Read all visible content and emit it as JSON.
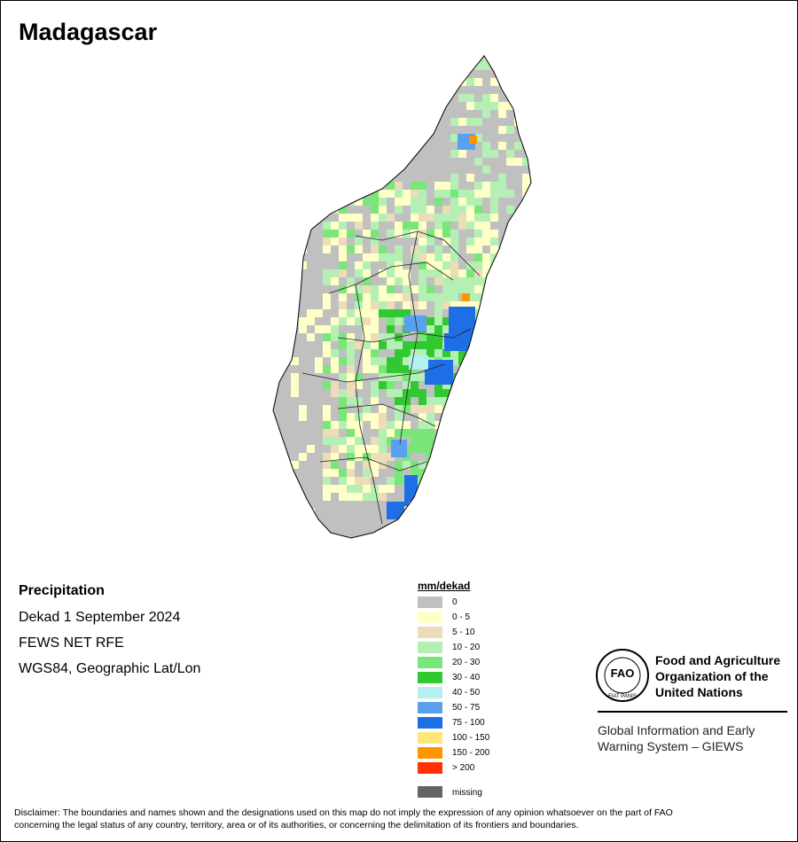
{
  "title": "Madagascar",
  "info": {
    "heading": "Precipitation",
    "lines": [
      "Dekad 1 September 2024",
      "FEWS NET RFE",
      "WGS84, Geographic Lat/Lon"
    ]
  },
  "legend": {
    "title": "mm/dekad",
    "items": [
      {
        "label": "0",
        "color": "#c0c0c0"
      },
      {
        "label": "0 - 5",
        "color": "#ffffc8"
      },
      {
        "label": "5 - 10",
        "color": "#ecdcb8"
      },
      {
        "label": "10 - 20",
        "color": "#b4f0b4"
      },
      {
        "label": "20 - 30",
        "color": "#78e678"
      },
      {
        "label": "30 - 40",
        "color": "#32c832"
      },
      {
        "label": "40 - 50",
        "color": "#b4f0f0"
      },
      {
        "label": "50 - 75",
        "color": "#5aa0f0"
      },
      {
        "label": "75 - 100",
        "color": "#1e6ee6"
      },
      {
        "label": "100 - 150",
        "color": "#ffe678"
      },
      {
        "label": "150 - 200",
        "color": "#ff9600"
      },
      {
        "label": "> 200",
        "color": "#ff3200"
      }
    ],
    "missing": {
      "label": "missing",
      "color": "#646464"
    }
  },
  "logo": {
    "emblem": "FAO",
    "motto": "FIAT PANIS",
    "org": [
      "Food and Agriculture",
      "Organization of the",
      "United Nations"
    ],
    "system": [
      "Global Information and Early",
      "Warning System – GIEWS"
    ]
  },
  "disclaimer": [
    "Disclaimer: The boundaries and names shown and the designations used on this map do not imply the expression of any opinion whatsoever on the part of FAO",
    "concerning the legal status of any country, territory, area or of its authorities, or concerning the delimitation of its frontiers and boundaries."
  ]
}
